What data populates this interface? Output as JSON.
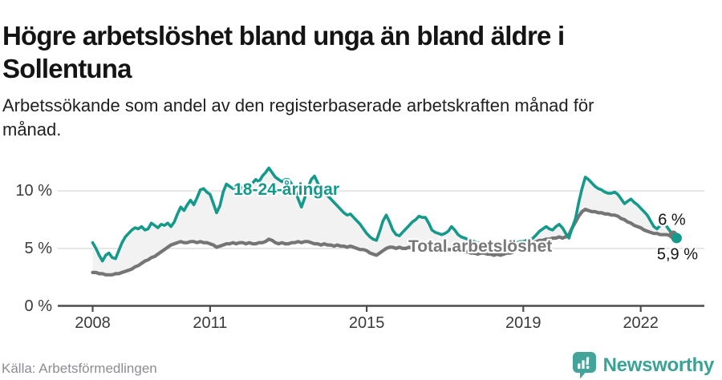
{
  "header": {
    "title_lines": [
      "Högre arbetslöshet bland unga än bland äldre i",
      "Sollentuna"
    ],
    "subtitle_lines": [
      "Arbetssökande som andel av den registerbaserade arbetskraften månad för",
      "månad."
    ]
  },
  "footer": {
    "source": "Källa: Arbetsförmedlingen",
    "brand": "Newsworthy",
    "brand_icon": "newsworthy-speech-bubble-chart-icon",
    "brand_color": "#3ba296"
  },
  "chart_data": {
    "type": "line",
    "title": "Högre arbetslöshet bland unga än bland äldre i Sollentuna",
    "subtitle": "Arbetssökande som andel av den registerbaserade arbetskraften månad för månad.",
    "unit": "%",
    "interval": "monthly",
    "x_start": "2008-01",
    "x_end": "2022-12",
    "x_tick_years": [
      2008,
      2011,
      2015,
      2019,
      2022
    ],
    "x_tick_labels": [
      "2008",
      "2011",
      "2015",
      "2019",
      "2022"
    ],
    "y_tick_values": [
      0,
      5,
      10
    ],
    "y_tick_labels": [
      "0 %",
      "5 %",
      "10 %"
    ],
    "ylim": [
      0,
      13
    ],
    "grid": "horizontal",
    "area_between_series": true,
    "area_fill_color": "#f2f2f2",
    "annotations": [
      {
        "series": 0,
        "x": 2012.95,
        "y": 10.05
      },
      {
        "series": 1,
        "x": 2017.9,
        "y": 5.15
      }
    ],
    "series": [
      {
        "name": "18-24-åringar",
        "color": "#15998a",
        "end_label": "5,9 %",
        "end_value": 5.9,
        "values": [
          5.5,
          5.0,
          4.4,
          3.9,
          4.4,
          4.6,
          4.2,
          4.1,
          4.8,
          5.5,
          6.0,
          6.3,
          6.6,
          6.8,
          6.7,
          6.9,
          6.6,
          6.7,
          7.2,
          7.0,
          6.8,
          7.1,
          7.0,
          7.2,
          6.9,
          7.3,
          8.0,
          8.6,
          8.3,
          8.8,
          9.2,
          8.8,
          9.4,
          10.1,
          10.2,
          9.9,
          9.7,
          8.9,
          8.1,
          8.7,
          9.9,
          10.6,
          10.4,
          10.2,
          10.4,
          10.1,
          10.3,
          10.5,
          10.5,
          10.7,
          11.0,
          10.8,
          11.3,
          11.6,
          12.0,
          11.6,
          11.2,
          11.0,
          10.8,
          11.0,
          11.0,
          10.6,
          10.1,
          9.3,
          8.6,
          9.4,
          10.3,
          11.0,
          11.3,
          10.7,
          10.2,
          9.9,
          9.6,
          9.3,
          9.0,
          8.7,
          8.4,
          8.1,
          7.9,
          8.0,
          7.7,
          7.4,
          7.1,
          6.7,
          6.3,
          6.0,
          5.8,
          5.7,
          6.5,
          7.4,
          7.9,
          7.3,
          6.6,
          6.2,
          6.1,
          6.4,
          6.7,
          7.0,
          7.3,
          7.5,
          7.8,
          7.7,
          7.7,
          7.2,
          6.6,
          6.4,
          6.3,
          6.2,
          6.3,
          6.5,
          6.9,
          6.6,
          6.2,
          6.0,
          5.9,
          5.8,
          5.7,
          5.6,
          5.5,
          5.5,
          5.4,
          5.3,
          5.5,
          5.4,
          5.3,
          5.2,
          5.3,
          5.4,
          5.3,
          5.4,
          5.5,
          5.6,
          5.6,
          5.7,
          5.8,
          5.9,
          6.2,
          6.5,
          6.7,
          6.9,
          6.7,
          6.6,
          6.9,
          7.1,
          6.8,
          6.3,
          5.9,
          6.8,
          7.6,
          9.0,
          10.2,
          11.2,
          11.0,
          10.7,
          10.4,
          10.2,
          10.1,
          9.9,
          9.8,
          9.8,
          9.9,
          9.7,
          9.3,
          8.9,
          9.1,
          9.3,
          9.0,
          8.8,
          8.5,
          8.2,
          7.9,
          7.4,
          6.9,
          6.7,
          7.0,
          7.3,
          6.9,
          6.5,
          6.2,
          5.9
        ]
      },
      {
        "name": "Total arbetslöshet",
        "color": "#757575",
        "end_label": "6 %",
        "end_value": 6.0,
        "values": [
          2.9,
          2.9,
          2.8,
          2.8,
          2.7,
          2.7,
          2.7,
          2.8,
          2.8,
          2.9,
          3.0,
          3.1,
          3.2,
          3.4,
          3.5,
          3.7,
          3.9,
          4.0,
          4.2,
          4.3,
          4.5,
          4.7,
          4.9,
          5.1,
          5.3,
          5.4,
          5.5,
          5.6,
          5.5,
          5.5,
          5.6,
          5.6,
          5.5,
          5.6,
          5.5,
          5.5,
          5.4,
          5.3,
          5.1,
          5.2,
          5.3,
          5.4,
          5.4,
          5.5,
          5.4,
          5.5,
          5.5,
          5.4,
          5.5,
          5.4,
          5.4,
          5.5,
          5.5,
          5.6,
          5.8,
          5.7,
          5.5,
          5.4,
          5.5,
          5.4,
          5.4,
          5.5,
          5.5,
          5.6,
          5.5,
          5.6,
          5.6,
          5.5,
          5.4,
          5.4,
          5.3,
          5.4,
          5.3,
          5.3,
          5.2,
          5.3,
          5.2,
          5.2,
          5.1,
          5.2,
          5.1,
          5.0,
          4.9,
          4.9,
          4.8,
          4.6,
          4.5,
          4.4,
          4.6,
          4.8,
          5.0,
          5.1,
          5.1,
          5.0,
          5.1,
          5.0,
          5.0,
          5.1,
          5.0,
          5.1,
          5.2,
          5.2,
          5.1,
          5.1,
          5.0,
          5.0,
          4.9,
          5.0,
          5.0,
          4.9,
          4.9,
          4.9,
          4.8,
          4.8,
          4.7,
          4.7,
          4.6,
          4.6,
          4.5,
          4.6,
          4.6,
          4.5,
          4.5,
          4.4,
          4.5,
          4.4,
          4.5,
          4.6,
          4.6,
          4.7,
          4.8,
          4.9,
          5.0,
          5.2,
          5.4,
          5.5,
          5.6,
          5.7,
          5.7,
          5.8,
          5.8,
          5.9,
          5.9,
          6.0,
          5.9,
          6.0,
          6.2,
          6.8,
          7.3,
          7.8,
          8.2,
          8.4,
          8.3,
          8.2,
          8.2,
          8.1,
          8.1,
          8.0,
          8.0,
          7.9,
          7.9,
          7.8,
          7.6,
          7.5,
          7.3,
          7.2,
          7.0,
          6.9,
          6.8,
          6.6,
          6.5,
          6.4,
          6.3,
          6.3,
          6.2,
          6.2,
          6.2,
          6.1,
          6.1,
          6.0
        ]
      }
    ]
  }
}
